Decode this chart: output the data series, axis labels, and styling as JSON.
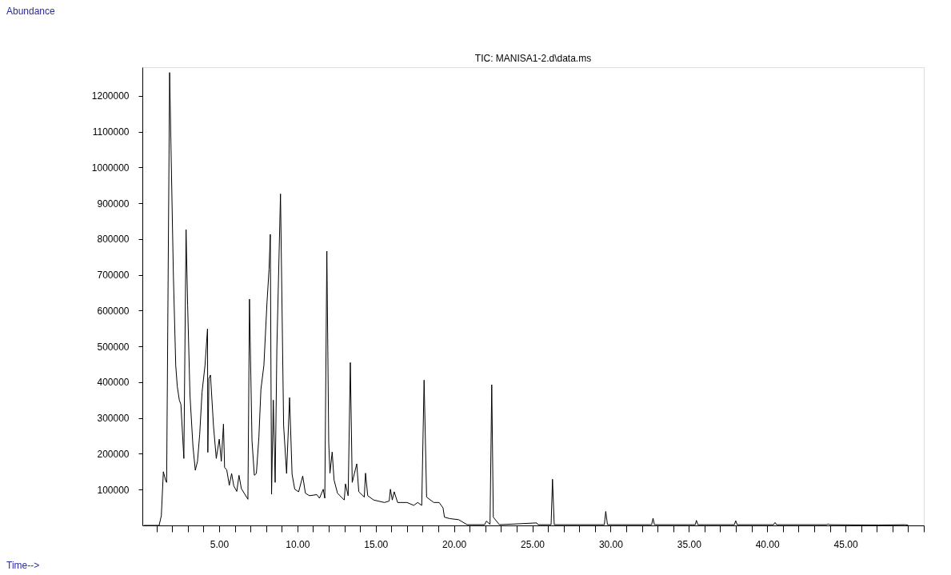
{
  "chart_data": {
    "type": "line",
    "title": "TIC: MANISA1-2.d\\data.ms",
    "annotations": [
      "Abundance",
      "Time-->"
    ],
    "x": [
      0.2,
      1.17,
      1.31,
      1.44,
      1.59,
      1.65,
      1.84,
      2.08,
      2.23,
      2.33,
      2.46,
      2.56,
      2.75,
      2.89,
      2.99,
      3.14,
      3.33,
      3.48,
      3.62,
      3.76,
      3.91,
      4.1,
      4.26,
      4.28,
      4.35,
      4.45,
      4.64,
      4.82,
      5.01,
      5.14,
      5.28,
      5.35,
      5.49,
      5.65,
      5.8,
      5.94,
      6.13,
      6.27,
      6.42,
      6.84,
      6.94,
      7.1,
      7.25,
      7.38,
      7.54,
      7.67,
      7.86,
      8.06,
      8.19,
      8.27,
      8.35,
      8.46,
      8.58,
      8.69,
      8.92,
      9.12,
      9.31,
      9.5,
      9.66,
      9.83,
      10.08,
      10.34,
      10.51,
      10.77,
      11.24,
      11.41,
      11.65,
      11.75,
      11.88,
      12.0,
      12.08,
      12.22,
      12.34,
      12.56,
      12.99,
      13.07,
      13.24,
      13.38,
      13.5,
      13.79,
      13.92,
      14.27,
      14.35,
      14.49,
      14.87,
      15.55,
      15.86,
      15.94,
      16.06,
      16.18,
      16.4,
      17.0,
      17.43,
      17.68,
      17.94,
      18.09,
      18.25,
      18.71,
      19.05,
      19.3,
      19.39,
      19.73,
      20.3,
      20.84,
      21.95,
      22.07,
      22.3,
      22.41,
      22.51,
      22.9,
      25.28,
      25.37,
      26.2,
      26.29,
      26.4,
      29.6,
      29.69,
      29.8,
      32.62,
      32.71,
      32.8,
      35.4,
      35.48,
      35.57,
      37.9,
      37.99,
      38.08,
      40.4,
      40.5,
      40.6,
      43.8,
      43.89,
      44.0,
      47.1,
      48.81,
      49.0
    ],
    "series": [
      {
        "color": "#000000",
        "values": [
          0,
          0,
          27000,
          150000,
          125000,
          120000,
          1265000,
          699000,
          447000,
          388000,
          350000,
          338000,
          187000,
          826000,
          616000,
          364000,
          221000,
          154000,
          179000,
          254000,
          372000,
          447000,
          549000,
          204000,
          410000,
          420000,
          279000,
          187000,
          241000,
          179000,
          283000,
          162000,
          155000,
          112000,
          145000,
          110000,
          95000,
          140000,
          103000,
          73000,
          632000,
          237000,
          140000,
          145000,
          246000,
          380000,
          447000,
          624000,
          716000,
          813000,
          87000,
          350000,
          120000,
          498000,
          926000,
          279000,
          145000,
          357000,
          143000,
          101000,
          94000,
          138000,
          90000,
          83000,
          86000,
          76000,
          101000,
          76000,
          766000,
          232000,
          146000,
          205000,
          127000,
          90000,
          71000,
          116000,
          83000,
          455000,
          120000,
          172000,
          94000,
          79000,
          146000,
          83000,
          71000,
          64000,
          68000,
          101000,
          71000,
          94000,
          64000,
          64000,
          56000,
          64000,
          56000,
          406000,
          79000,
          64000,
          64000,
          49000,
          23000,
          19000,
          16000,
          2000,
          2000,
          12000,
          3000,
          393000,
          23000,
          2000,
          7000,
          2000,
          2000,
          129000,
          2000,
          2000,
          39000,
          2000,
          2000,
          20000,
          2000,
          2000,
          14000,
          2000,
          2000,
          13000,
          2000,
          2000,
          8000,
          2000,
          2000,
          4000,
          2000,
          1000,
          2000,
          1000
        ]
      }
    ],
    "xlim": [
      0.1,
      50
    ],
    "ylim": [
      0,
      1280000
    ],
    "xticks": [
      {
        "value": 1,
        "label": null
      },
      {
        "value": 2,
        "label": null
      },
      {
        "value": 3,
        "label": null
      },
      {
        "value": 4,
        "label": null
      },
      {
        "value": 5,
        "label": "5.00"
      },
      {
        "value": 6,
        "label": null
      },
      {
        "value": 7,
        "label": null
      },
      {
        "value": 8,
        "label": null
      },
      {
        "value": 9,
        "label": null
      },
      {
        "value": 10,
        "label": "10.00"
      },
      {
        "value": 11,
        "label": null
      },
      {
        "value": 12,
        "label": null
      },
      {
        "value": 13,
        "label": null
      },
      {
        "value": 14,
        "label": null
      },
      {
        "value": 15,
        "label": "15.00"
      },
      {
        "value": 16,
        "label": null
      },
      {
        "value": 17,
        "label": null
      },
      {
        "value": 18,
        "label": null
      },
      {
        "value": 19,
        "label": null
      },
      {
        "value": 20,
        "label": "20.00"
      },
      {
        "value": 21,
        "label": null
      },
      {
        "value": 22,
        "label": null
      },
      {
        "value": 23,
        "label": null
      },
      {
        "value": 24,
        "label": null
      },
      {
        "value": 25,
        "label": "25.00"
      },
      {
        "value": 26,
        "label": null
      },
      {
        "value": 27,
        "label": null
      },
      {
        "value": 28,
        "label": null
      },
      {
        "value": 29,
        "label": null
      },
      {
        "value": 30,
        "label": "30.00"
      },
      {
        "value": 31,
        "label": null
      },
      {
        "value": 32,
        "label": null
      },
      {
        "value": 33,
        "label": null
      },
      {
        "value": 34,
        "label": null
      },
      {
        "value": 35,
        "label": "35.00"
      },
      {
        "value": 36,
        "label": null
      },
      {
        "value": 37,
        "label": null
      },
      {
        "value": 38,
        "label": null
      },
      {
        "value": 39,
        "label": null
      },
      {
        "value": 40,
        "label": "40.00"
      },
      {
        "value": 41,
        "label": null
      },
      {
        "value": 42,
        "label": null
      },
      {
        "value": 43,
        "label": null
      },
      {
        "value": 44,
        "label": null
      },
      {
        "value": 45,
        "label": "45.00"
      },
      {
        "value": 46,
        "label": null
      },
      {
        "value": 47,
        "label": null
      },
      {
        "value": 48,
        "label": null
      },
      {
        "value": 49,
        "label": null
      },
      {
        "value": 50,
        "label": null
      }
    ],
    "yticks": [
      100000,
      200000,
      300000,
      400000,
      500000,
      600000,
      700000,
      800000,
      900000,
      1000000,
      1100000,
      1200000
    ],
    "grid": false,
    "marker": "none",
    "line_style": "solid"
  }
}
